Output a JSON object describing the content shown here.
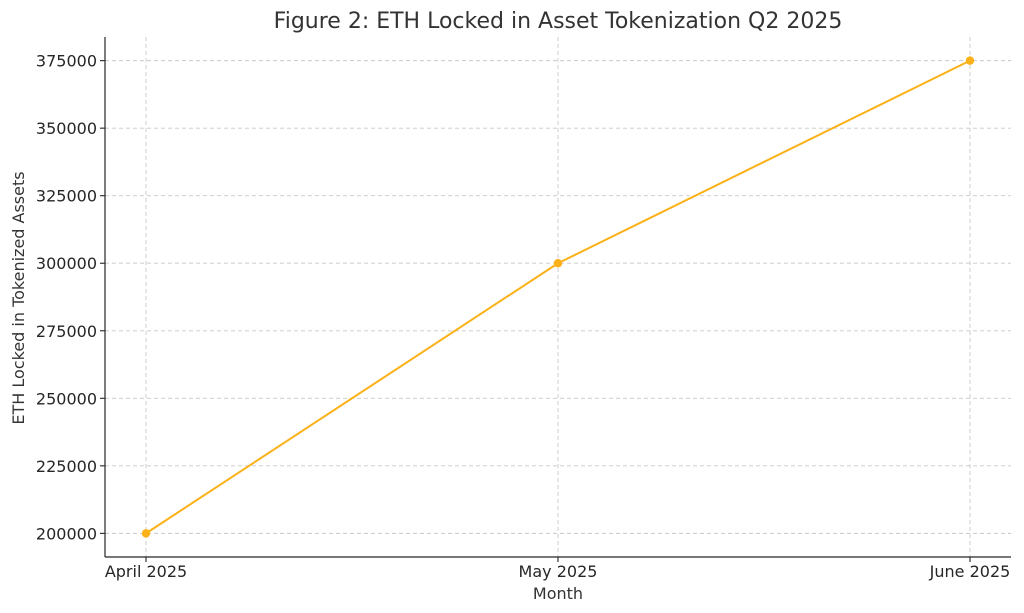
{
  "chart_data": {
    "type": "line",
    "title": "Figure 2: ETH Locked in Asset Tokenization Q2 2025",
    "xlabel": "Month",
    "ylabel": "ETH Locked in Tokenized Assets",
    "categories": [
      "April 2025",
      "May 2025",
      "June 2025"
    ],
    "series": [
      {
        "values": [
          200000,
          300000,
          375000
        ],
        "color": "#FBB117",
        "marker": "circle"
      }
    ],
    "yticks": [
      200000,
      225000,
      250000,
      275000,
      300000,
      325000,
      350000,
      375000
    ],
    "ylim": [
      191250,
      383750
    ],
    "grid": true,
    "legend": "none"
  }
}
